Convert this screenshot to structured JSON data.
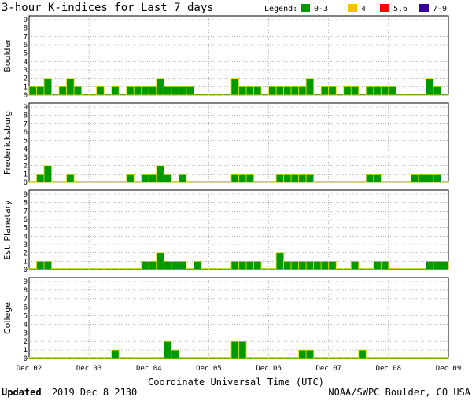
{
  "chart_data": {
    "type": "bar",
    "title": "3-hour K-indices for Last 7 days",
    "legend": {
      "label": "Legend:",
      "items": [
        {
          "label": "0-3",
          "color": "#009900"
        },
        {
          "label": "4",
          "color": "#f2c200"
        },
        {
          "label": "5,6",
          "color": "#ff0000"
        },
        {
          "label": "7-9",
          "color": "#330099"
        }
      ]
    },
    "bar_outline_color": "#dddd00",
    "ylim": [
      0,
      9
    ],
    "yticks": [
      0,
      1,
      2,
      3,
      4,
      5,
      6,
      7,
      8,
      9
    ],
    "date_labels": [
      "Dec 02",
      "Dec 03",
      "Dec 04",
      "Dec 05",
      "Dec 06",
      "Dec 07",
      "Dec 08",
      "Dec 09"
    ],
    "xlabel": "Coordinate Universal Time (UTC)",
    "series": [
      {
        "name": "Boulder",
        "values": [
          1,
          1,
          2,
          0,
          1,
          2,
          1,
          0,
          0,
          1,
          0,
          1,
          0,
          1,
          1,
          1,
          1,
          2,
          1,
          1,
          1,
          1,
          0,
          0,
          0,
          0,
          0,
          2,
          1,
          1,
          1,
          0,
          1,
          1,
          1,
          1,
          1,
          2,
          0,
          1,
          1,
          0,
          1,
          1,
          0,
          1,
          1,
          1,
          1,
          0,
          0,
          0,
          0,
          2,
          1,
          0
        ]
      },
      {
        "name": "Fredericksburg",
        "values": [
          0,
          1,
          2,
          0,
          0,
          1,
          0,
          0,
          0,
          0,
          0,
          0,
          0,
          1,
          0,
          1,
          1,
          2,
          1,
          0,
          1,
          0,
          0,
          0,
          0,
          0,
          0,
          1,
          1,
          1,
          0,
          0,
          0,
          1,
          1,
          1,
          1,
          1,
          0,
          0,
          0,
          0,
          0,
          0,
          0,
          1,
          1,
          0,
          0,
          0,
          0,
          1,
          1,
          1,
          1,
          0
        ]
      },
      {
        "name": "Est. Planetary",
        "values": [
          0,
          1,
          1,
          0,
          0,
          0,
          0,
          0,
          0,
          0,
          0,
          0,
          0,
          0,
          0,
          1,
          1,
          2,
          1,
          1,
          1,
          0,
          1,
          0,
          0,
          0,
          0,
          1,
          1,
          1,
          1,
          0,
          0,
          2,
          1,
          1,
          1,
          1,
          1,
          1,
          1,
          0,
          0,
          1,
          0,
          0,
          1,
          1,
          0,
          0,
          0,
          0,
          0,
          1,
          1,
          1
        ]
      },
      {
        "name": "College",
        "values": [
          0,
          0,
          0,
          0,
          0,
          0,
          0,
          0,
          0,
          0,
          0,
          1,
          0,
          0,
          0,
          0,
          0,
          0,
          2,
          1,
          0,
          0,
          0,
          0,
          0,
          0,
          0,
          2,
          2,
          0,
          0,
          0,
          0,
          0,
          0,
          0,
          1,
          1,
          0,
          0,
          0,
          0,
          0,
          0,
          1,
          0,
          0,
          0,
          0,
          0,
          0,
          0,
          0,
          0,
          0,
          0
        ]
      }
    ]
  },
  "footer": {
    "updated_label": "Updated",
    "updated_value": "2019 Dec  8 2130",
    "credit": "NOAA/SWPC Boulder, CO USA"
  }
}
